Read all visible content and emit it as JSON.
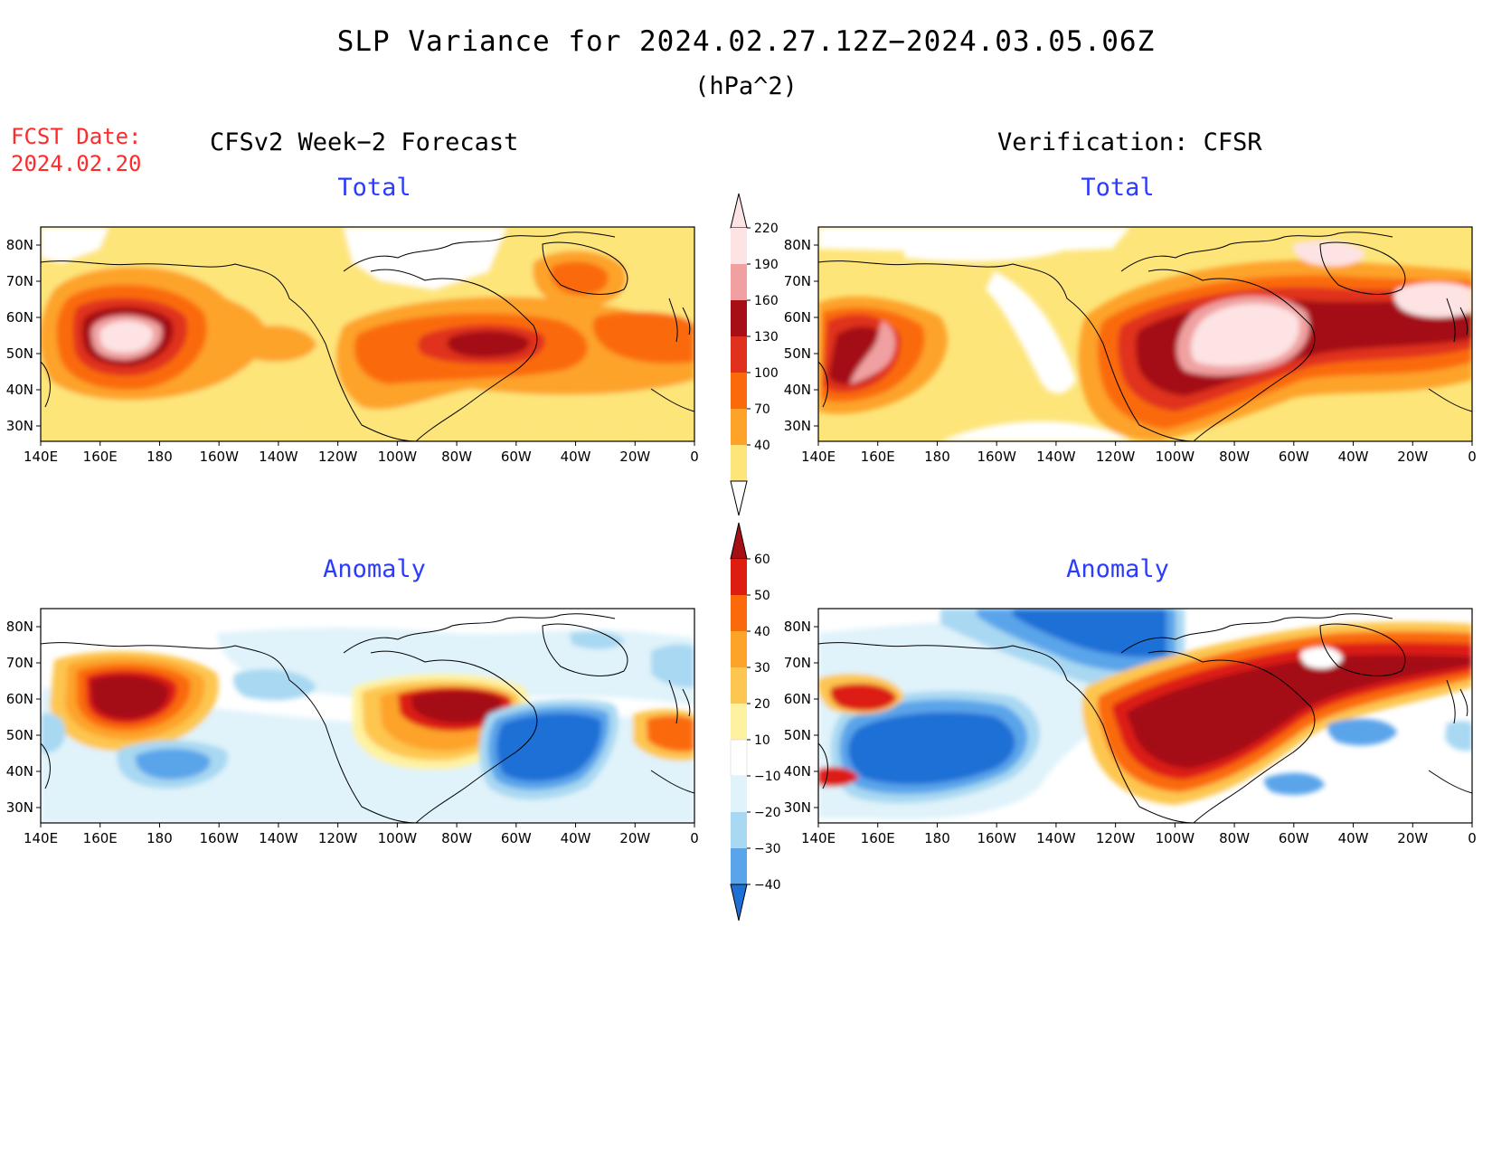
{
  "title": "SLP Variance for 2024.02.27.12Z−2024.03.05.06Z",
  "units": "(hPa^2)",
  "forecast_date": {
    "line1": "FCST Date:",
    "line2": "2024.02.20"
  },
  "left_header": "CFSv2 Week−2 Forecast",
  "right_header": "Verification: CFSR",
  "panels": {
    "top_left": "Total",
    "top_right": "Total",
    "bottom_left": "Anomaly",
    "bottom_right": "Anomaly"
  },
  "lon_labels": [
    "140E",
    "160E",
    "180",
    "160W",
    "140W",
    "120W",
    "100W",
    "80W",
    "60W",
    "40W",
    "20W",
    "0"
  ],
  "lat_labels": [
    "80N",
    "70N",
    "60N",
    "50N",
    "40N",
    "30N"
  ],
  "total_colorbar": {
    "labels": [
      "220",
      "190",
      "160",
      "130",
      "100",
      "70",
      "40"
    ],
    "colors": [
      "#fde3e3",
      "#f0a0a0",
      "#a50f15",
      "#e0301e",
      "#fa6a0a",
      "#fda32a",
      "#fde57a"
    ]
  },
  "anomaly_colorbar": {
    "labels": [
      "60",
      "50",
      "40",
      "30",
      "20",
      "10",
      "−10",
      "−20",
      "−30",
      "−40"
    ],
    "colors": [
      "#a50f15",
      "#dd1d12",
      "#fa6a0a",
      "#fda32a",
      "#fdc650",
      "#fef2a0",
      "#ffffff",
      "#e0f3fa",
      "#a8d8f2",
      "#5aa4ea",
      "#1e6fd6"
    ]
  }
}
